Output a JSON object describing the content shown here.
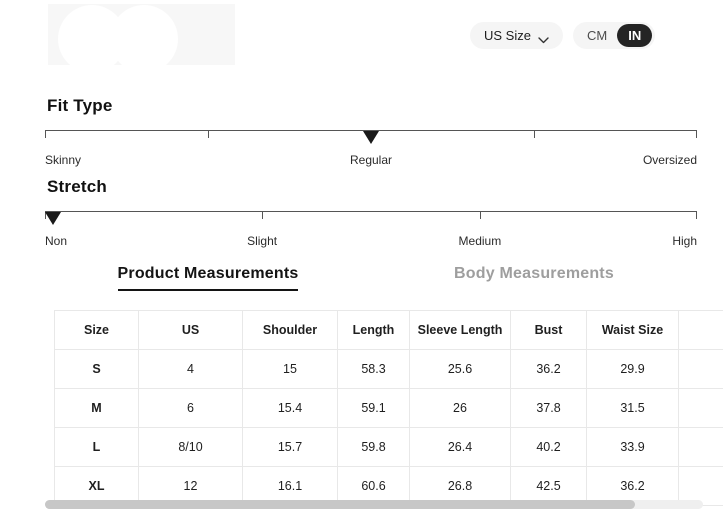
{
  "controls": {
    "size_system_label": "US Size",
    "unit_cm": "CM",
    "unit_in": "IN",
    "selected_unit": "IN"
  },
  "fit_type": {
    "title": "Fit Type",
    "selected": "Regular",
    "marker_position_pct": 50,
    "ticks_pct": [
      0,
      25,
      50,
      75,
      100
    ],
    "labels": [
      {
        "text": "Skinny",
        "pct": 0
      },
      {
        "text": "Regular",
        "pct": 50
      },
      {
        "text": "Oversized",
        "pct": 100
      }
    ]
  },
  "stretch": {
    "title": "Stretch",
    "selected": "Non",
    "marker_position_pct": 0,
    "ticks_pct": [
      0,
      33.3,
      66.7,
      100
    ],
    "labels": [
      {
        "text": "Non",
        "pct": 0
      },
      {
        "text": "Slight",
        "pct": 33.3
      },
      {
        "text": "Medium",
        "pct": 66.7
      },
      {
        "text": "High",
        "pct": 100
      }
    ]
  },
  "tabs": [
    {
      "label": "Product Measurements",
      "active": true
    },
    {
      "label": "Body Measurements",
      "active": false
    }
  ],
  "measurement_table": {
    "columns": [
      "Size",
      "US",
      "Shoulder",
      "Length",
      "Sleeve Length",
      "Bust",
      "Waist Size"
    ],
    "rows": [
      [
        "S",
        "4",
        "15",
        "58.3",
        "25.6",
        "36.2",
        "29.9"
      ],
      [
        "M",
        "6",
        "15.4",
        "59.1",
        "26",
        "37.8",
        "31.5"
      ],
      [
        "L",
        "8/10",
        "15.7",
        "59.8",
        "26.4",
        "40.2",
        "33.9"
      ],
      [
        "XL",
        "12",
        "16.1",
        "60.6",
        "26.8",
        "42.5",
        "36.2"
      ]
    ]
  },
  "colors": {
    "accent_dark": "#242424",
    "pill_bg": "#f5f5f5",
    "tab_inactive": "#9e9e9e",
    "table_border": "#e8e8e8",
    "slider_line": "#555555",
    "scrollbar_thumb": "#c7c7c7",
    "scrollbar_track": "#efefef"
  }
}
